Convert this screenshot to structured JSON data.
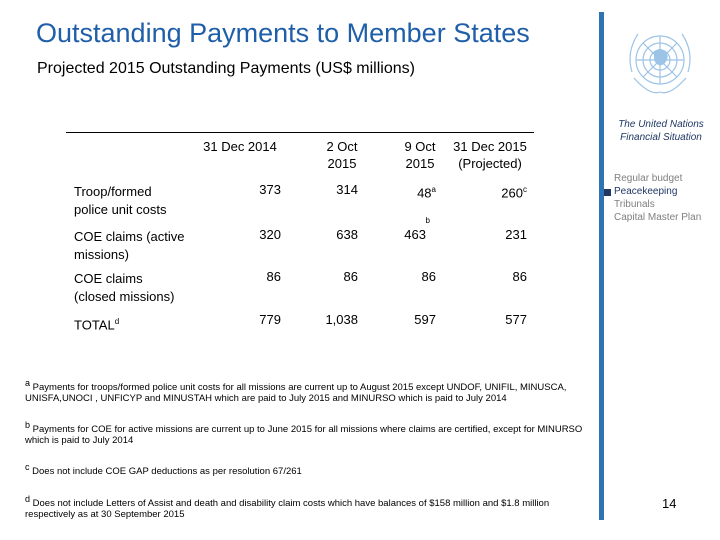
{
  "title": "Outstanding Payments to Member States",
  "subtitle": "Projected 2015 Outstanding Payments (US$ millions)",
  "table": {
    "columns": [
      [
        "31 Dec 2014"
      ],
      [
        "2 Oct",
        "2015"
      ],
      [
        "9 Oct",
        "2015"
      ],
      [
        "31 Dec 2015",
        "(Projected)"
      ]
    ],
    "rows": [
      {
        "label": "Troop/formed police unit costs",
        "cells": [
          {
            "value": "373"
          },
          {
            "value": "314"
          },
          {
            "value": "48",
            "note": "a"
          },
          {
            "value": "260",
            "note": "c"
          }
        ]
      },
      {
        "label": "COE claims (active missions)",
        "cells": [
          {
            "value": "320"
          },
          {
            "value": "638"
          },
          {
            "value": "463",
            "note": "b"
          },
          {
            "value": "231"
          }
        ]
      },
      {
        "label": "COE claims (closed missions)",
        "cells": [
          {
            "value": "86"
          },
          {
            "value": "86"
          },
          {
            "value": "86"
          },
          {
            "value": "86"
          }
        ]
      },
      {
        "label": "TOTAL",
        "note": "d",
        "cells": [
          {
            "value": "779"
          },
          {
            "value": "1,038"
          },
          {
            "value": "597"
          },
          {
            "value": "577"
          }
        ]
      }
    ]
  },
  "footnotes": [
    {
      "mark": "a",
      "text": "Payments for troops/formed police unit costs for all missions are current up to August 2015 except UNDOF, UNIFIL, MINUSCA, UNISFA,UNOCI , UNFICYP and MINUSTAH which are paid to July 2015 and MINURSO which is paid to July 2014"
    },
    {
      "mark": "b",
      "text": "Payments for COE for active missions are current up to June 2015 for all missions where claims are certified, except for MINURSO which is paid to July 2014"
    },
    {
      "mark": "c",
      "text": "Does not include COE GAP deductions as per resolution 67/261"
    },
    {
      "mark": "d",
      "text": "Does not include Letters of Assist and death and disability claim costs which have balances of $158 million and $1.8 million respectively as at 30 September 2015"
    }
  ],
  "sidebar": {
    "heading": "The United Nations Financial Situation",
    "items": [
      "Regular budget",
      "Peacekeeping",
      "Tribunals",
      "Capital Master Plan"
    ],
    "selected": 1
  },
  "page_number": "14"
}
